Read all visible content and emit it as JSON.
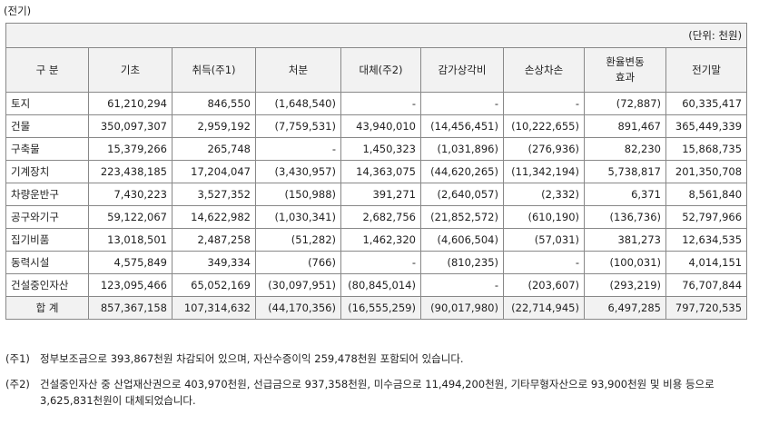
{
  "title": "(전기)",
  "table": {
    "unit": "(단위: 천원)",
    "header": [
      "구 분",
      "기초",
      "취득(주1)",
      "처분",
      "대체(주2)",
      "감가상각비",
      "손상차손",
      "환율변동\n효과",
      "전기말"
    ],
    "rows": [
      [
        "토지",
        "61,210,294",
        "846,550",
        "(1,648,540)",
        "-",
        "-",
        "-",
        "(72,887)",
        "60,335,417"
      ],
      [
        "건물",
        "350,097,307",
        "2,959,192",
        "(7,759,531)",
        "43,940,010",
        "(14,456,451)",
        "(10,222,655)",
        "891,467",
        "365,449,339"
      ],
      [
        "구축물",
        "15,379,266",
        "265,748",
        "-",
        "1,450,323",
        "(1,031,896)",
        "(276,936)",
        "82,230",
        "15,868,735"
      ],
      [
        "기계장치",
        "223,438,185",
        "17,204,047",
        "(3,430,957)",
        "14,363,075",
        "(44,620,265)",
        "(11,342,194)",
        "5,738,817",
        "201,350,708"
      ],
      [
        "차량운반구",
        "7,430,223",
        "3,527,352",
        "(150,988)",
        "391,271",
        "(2,640,057)",
        "(2,332)",
        "6,371",
        "8,561,840"
      ],
      [
        "공구와기구",
        "59,122,067",
        "14,622,982",
        "(1,030,341)",
        "2,682,756",
        "(21,852,572)",
        "(610,190)",
        "(136,736)",
        "52,797,966"
      ],
      [
        "집기비품",
        "13,018,501",
        "2,487,258",
        "(51,282)",
        "1,462,320",
        "(4,606,504)",
        "(57,031)",
        "381,273",
        "12,634,535"
      ],
      [
        "동력시설",
        "4,575,849",
        "349,334",
        "(766)",
        "-",
        "(810,235)",
        "-",
        "(100,031)",
        "4,014,151"
      ],
      [
        "건설중인자산",
        "123,095,466",
        "65,052,169",
        "(30,097,951)",
        "(80,845,014)",
        "-",
        "(203,607)",
        "(293,219)",
        "76,707,844"
      ],
      [
        "합 계",
        "857,367,158",
        "107,314,632",
        "(44,170,356)",
        "(16,555,259)",
        "(90,017,980)",
        "(22,714,945)",
        "6,497,285",
        "797,720,535"
      ]
    ]
  },
  "notes": [
    {
      "label": "(주1)",
      "text": "정부보조금으로 393,867천원 차감되어 있으며, 자산수증이익 259,478천원 포함되어 있습니다."
    },
    {
      "label": "(주2)",
      "text": "건설중인자산 중 산업재산권으로 403,970천원, 선급금으로 937,358천원, 미수금으로 11,494,200천원, 기타무형자산으로 93,900천원 및 비용 등으로 3,625,831천원이 대체되었습니다."
    }
  ]
}
